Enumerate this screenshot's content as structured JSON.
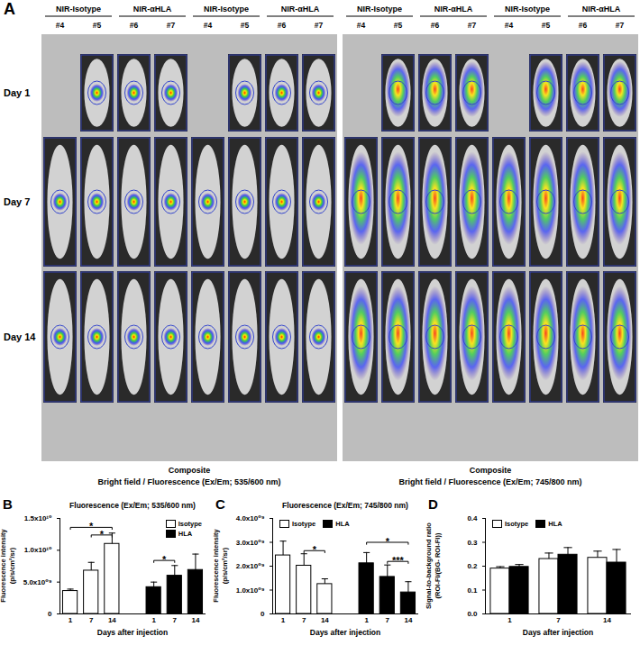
{
  "panel_a": {
    "letter": "A",
    "groups": [
      {
        "label": "NIR-Isotype",
        "mice": [
          "#4",
          "#5"
        ]
      },
      {
        "label": "NIR-αHLA",
        "mice": [
          "#6",
          "#7"
        ]
      }
    ],
    "rows": [
      {
        "label": "Day 1",
        "shown": [
          false,
          true,
          true,
          true,
          false,
          true,
          true,
          true
        ]
      },
      {
        "label": "Day 7",
        "shown": [
          true,
          true,
          true,
          true,
          true,
          true,
          true,
          true
        ]
      },
      {
        "label": "Day 14",
        "shown": [
          true,
          true,
          true,
          true,
          true,
          true,
          true,
          true
        ]
      }
    ],
    "halves": [
      {
        "lines": [
          "Composite",
          "Bright field / Fluorescence (Ex/Em; 535/600 nm)"
        ]
      },
      {
        "lines": [
          "Composite",
          "Bright field / Fluorescence (Ex/Em; 745/800 nm)"
        ]
      }
    ]
  },
  "chart_data": [
    {
      "panel": "B",
      "type": "bar",
      "title": "Fluorescence (Ex/Em; 535/600 nm)",
      "ylabel": "Fluorescence intensity\n(p/s/cm²/sr)",
      "xlabel": "Days after injection",
      "categories": [
        "1",
        "7",
        "14",
        null,
        "1",
        "7",
        "14"
      ],
      "series": [
        {
          "name": "Isotype",
          "color": "#ffffff",
          "values": [
            3600000000.0,
            6800000000.0,
            11000000000.0,
            null,
            null,
            null,
            null
          ],
          "errors": [
            300000000.0,
            1300000000.0,
            1700000000.0,
            null,
            null,
            null,
            null
          ]
        },
        {
          "name": "HLA",
          "color": "#000000",
          "values": [
            null,
            null,
            null,
            null,
            4200000000.0,
            6000000000.0,
            6900000000.0
          ],
          "errors": [
            null,
            null,
            null,
            null,
            800000000.0,
            1600000000.0,
            2500000000.0
          ]
        }
      ],
      "ylim": [
        0,
        15000000000.0
      ],
      "yticks": [
        0,
        {
          "value": 5000000000.0,
          "label": "5.0x10⁰⁹"
        },
        {
          "value": 10000000000.0,
          "label": "1.0x10¹⁰"
        },
        {
          "value": 15000000000.0,
          "label": "1.5x10¹⁰"
        }
      ],
      "legend": "top-right",
      "annotations": [
        {
          "text": "*",
          "from": 0,
          "to": 2,
          "y": 13600000000.0
        },
        {
          "text": "*",
          "from": 1,
          "to": 2,
          "y": 12400000000.0
        },
        {
          "text": "*",
          "from": 4,
          "to": 5,
          "y": 8400000000.0
        }
      ]
    },
    {
      "panel": "C",
      "type": "bar",
      "title": "Fluorescence (Ex/Em; 745/800 nm)",
      "ylabel": "Fluorescence intensity\n(p/s/cm²/sr)",
      "xlabel": "Days after injection",
      "categories": [
        "1",
        "7",
        "14",
        null,
        "1",
        "7",
        "14"
      ],
      "series": [
        {
          "name": "Isotype",
          "color": "#ffffff",
          "values": [
            2450000000.0,
            2020000000.0,
            1250000000.0,
            null,
            null,
            null,
            null
          ],
          "errors": [
            600000000.0,
            500000000.0,
            220000000.0,
            null,
            null,
            null,
            null
          ]
        },
        {
          "name": "HLA",
          "color": "#000000",
          "values": [
            null,
            null,
            null,
            null,
            2120000000.0,
            1550000000.0,
            900000000.0
          ],
          "errors": [
            null,
            null,
            null,
            null,
            450000000.0,
            500000000.0,
            450000000.0
          ]
        }
      ],
      "ylim": [
        0,
        4000000000.0
      ],
      "yticks": [
        0,
        {
          "value": 1000000000.0,
          "label": "1.0x10⁰⁹"
        },
        {
          "value": 2000000000.0,
          "label": "2.0x10⁰⁹"
        },
        {
          "value": 3000000000.0,
          "label": "3.0x10⁰⁹"
        },
        {
          "value": 4000000000.0,
          "label": "4.0x10⁰⁹"
        }
      ],
      "legend": "top-left",
      "annotations": [
        {
          "text": "*",
          "from": 1,
          "to": 2,
          "y": 2650000000.0
        },
        {
          "text": "*",
          "from": 4,
          "to": 6,
          "y": 3000000000.0
        },
        {
          "text": "***",
          "from": 5,
          "to": 6,
          "y": 2200000000.0
        }
      ]
    },
    {
      "panel": "D",
      "type": "bar",
      "ylabel": "Signal-to-background ratio\n(ROI-FI/(BG- ROI-FI))",
      "xlabel": "Days after injection",
      "categories": [
        "1",
        "7",
        "14"
      ],
      "series": [
        {
          "name": "Isotype",
          "color": "#ffffff",
          "values": [
            0.19,
            0.23,
            0.235
          ],
          "errors": [
            0.008,
            0.025,
            0.028
          ]
        },
        {
          "name": "HLA",
          "color": "#000000",
          "values": [
            0.197,
            0.248,
            0.215
          ],
          "errors": [
            0.01,
            0.03,
            0.055
          ]
        }
      ],
      "ylim": [
        0,
        0.4
      ],
      "yticks": [
        {
          "value": 0,
          "label": "0.0"
        },
        0.1,
        0.2,
        0.3,
        0.4
      ],
      "legend": "top-left"
    }
  ]
}
